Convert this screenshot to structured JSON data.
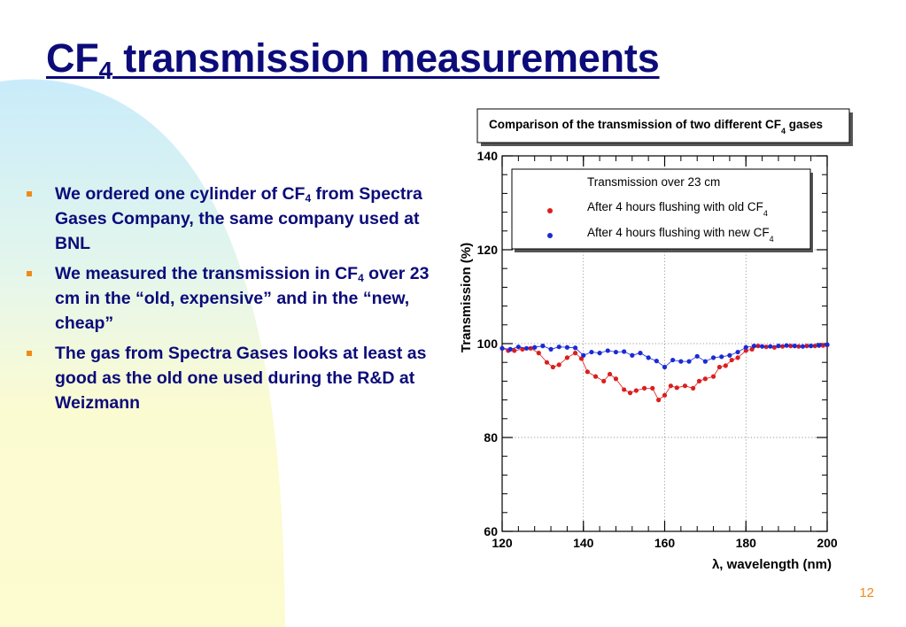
{
  "slide": {
    "title_main": "CF",
    "title_sub": "4",
    "title_rest": " transmission measurements",
    "page_number": "12",
    "bullets": [
      {
        "text_a": "We ordered one cylinder of CF",
        "sub": "4",
        "text_b": " from Spectra Gases Company, the same company used at BNL"
      },
      {
        "text_a": "We measured the transmission in CF",
        "sub": "4",
        "text_b": " over 23 cm in the “old, expensive” and in the “new, cheap”"
      },
      {
        "text_a": "The gas from Spectra Gases looks at least as good as the old one used during the R&D at Weizmann",
        "sub": "",
        "text_b": ""
      }
    ],
    "colors": {
      "title": "#0b0b7a",
      "bullet_marker": "#f08a18",
      "background_blob": "#fdfbd0",
      "background_blob_top": "#c9ecfa"
    }
  },
  "chart_data": {
    "type": "line",
    "title_a": "Comparison of the transmission of two different CF",
    "title_sub": "4",
    "title_b": " gases",
    "xlabel": "λ, wavelength (nm)",
    "ylabel": "Transmission (%)",
    "xlim": [
      120,
      200
    ],
    "ylim": [
      60,
      140
    ],
    "xticks": [
      120,
      140,
      160,
      180,
      200
    ],
    "yticks": [
      60,
      80,
      100,
      120,
      140
    ],
    "grid": true,
    "legend": {
      "position": "top",
      "header": "Transmission over 23 cm",
      "entries": [
        {
          "text": "After 4 hours flushing with old CF",
          "sub": "4",
          "color": "#dd1e1e"
        },
        {
          "text": "After 4 hours flushing with new CF",
          "sub": "4",
          "color": "#1a2ad6"
        }
      ]
    },
    "series": [
      {
        "color": "#dd1e1e",
        "x": [
          120,
          121.5,
          123,
          125,
          127,
          129,
          131,
          132.5,
          134,
          136,
          138,
          139.5,
          141,
          143,
          145,
          146.5,
          148,
          150,
          151.5,
          153,
          155,
          157,
          158.5,
          160,
          161.5,
          163,
          165,
          167,
          168.5,
          170,
          172,
          173.5,
          175,
          176.5,
          178,
          180,
          181.5,
          183,
          185,
          187,
          189,
          191,
          193,
          195,
          197,
          199,
          200
        ],
        "y": [
          99,
          98.5,
          98.5,
          98.8,
          99,
          98,
          96,
          95,
          95.5,
          97,
          98,
          96.8,
          94,
          93,
          92,
          93.5,
          92.5,
          90.2,
          89.5,
          90,
          90.5,
          90.5,
          88,
          89,
          91,
          90.6,
          91,
          90.5,
          92,
          92.5,
          93,
          95,
          95.3,
          96.5,
          97,
          98.5,
          98.8,
          99.5,
          99.3,
          99.2,
          99.4,
          99.5,
          99.4,
          99.5,
          99.5,
          99.6,
          99.7
        ]
      },
      {
        "color": "#1a2ad6",
        "x": [
          120,
          122,
          124,
          126,
          128,
          130,
          132,
          134,
          136,
          138,
          140,
          142,
          144,
          146,
          148,
          150,
          152,
          154,
          156,
          158,
          160,
          162,
          164,
          166,
          168,
          170,
          172,
          174,
          176,
          178,
          180,
          182,
          184,
          186,
          188,
          190,
          192,
          194,
          196,
          198,
          200
        ],
        "y": [
          99,
          98.8,
          99.3,
          99,
          99.2,
          99.5,
          98.8,
          99.3,
          99.2,
          99.1,
          97.5,
          98.2,
          98,
          98.5,
          98.2,
          98.3,
          97.5,
          98,
          97,
          96.3,
          95,
          96.5,
          96.2,
          96.2,
          97.3,
          96.2,
          97,
          97.2,
          97.5,
          98.2,
          99.2,
          99.5,
          99.4,
          99.4,
          99.5,
          99.6,
          99.5,
          99.4,
          99.5,
          99.6,
          99.8
        ]
      }
    ]
  }
}
